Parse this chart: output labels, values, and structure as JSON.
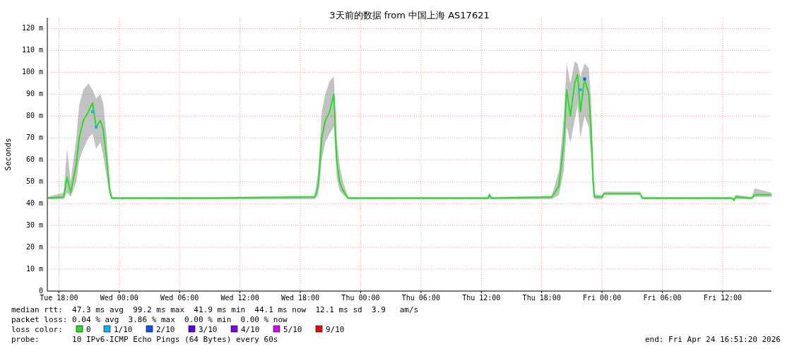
{
  "chart_data": {
    "type": "line",
    "title": "3天前的数据 from 中国上海 AS17621",
    "ylabel": "Seconds",
    "xlim": [
      "2026-04-21T16:51",
      "2026-04-24T16:51"
    ],
    "xticks": [
      {
        "value": "2026-04-21T18:00",
        "label": "Tue 18:00"
      },
      {
        "value": "2026-04-22T00:00",
        "label": "Wed 00:00"
      },
      {
        "value": "2026-04-22T06:00",
        "label": "Wed 06:00"
      },
      {
        "value": "2026-04-22T12:00",
        "label": "Wed 12:00"
      },
      {
        "value": "2026-04-22T18:00",
        "label": "Wed 18:00"
      },
      {
        "value": "2026-04-23T00:00",
        "label": "Thu 00:00"
      },
      {
        "value": "2026-04-23T06:00",
        "label": "Thu 06:00"
      },
      {
        "value": "2026-04-23T12:00",
        "label": "Thu 12:00"
      },
      {
        "value": "2026-04-23T18:00",
        "label": "Thu 18:00"
      },
      {
        "value": "2026-04-24T00:00",
        "label": "Fri 00:00"
      },
      {
        "value": "2026-04-24T06:00",
        "label": "Fri 06:00"
      },
      {
        "value": "2026-04-24T12:00",
        "label": "Fri 12:00"
      }
    ],
    "ylim": [
      0,
      125
    ],
    "yticks": [
      0,
      {
        "value": 10,
        "label": "10 m"
      },
      {
        "value": 20,
        "label": "20 m"
      },
      {
        "value": 30,
        "label": "30 m"
      },
      {
        "value": 40,
        "label": "40 m"
      },
      {
        "value": 50,
        "label": "50 m"
      },
      {
        "value": 60,
        "label": "60 m"
      },
      {
        "value": 70,
        "label": "70 m"
      },
      {
        "value": 80,
        "label": "80 m"
      },
      {
        "value": 90,
        "label": "90 m"
      },
      {
        "value": 100,
        "label": "100 m"
      },
      {
        "value": 110,
        "label": "110 m"
      },
      {
        "value": 120,
        "label": "120 m"
      }
    ],
    "grid": true,
    "legend": "bottom",
    "legend_title": "loss color:",
    "series": [
      {
        "name": "0",
        "color": "#22e022",
        "x": [
          "2026-04-21T16:51",
          "2026-04-21T18:28",
          "2026-04-21T18:49",
          "2026-04-21T19:10",
          "2026-04-21T19:44",
          "2026-04-21T20:01",
          "2026-04-21T20:26",
          "2026-04-21T20:56",
          "2026-04-21T21:21",
          "2026-04-21T21:42",
          "2026-04-21T22:07",
          "2026-04-21T22:24",
          "2026-04-21T22:45",
          "2026-04-21T23:02",
          "2026-04-21T23:15",
          "2026-04-22T09:14",
          "2026-04-22T19:26",
          "2026-04-22T19:47",
          "2026-04-22T20:08",
          "2026-04-22T20:29",
          "2026-04-22T20:55",
          "2026-04-22T21:20",
          "2026-04-22T21:37",
          "2026-04-22T21:54",
          "2026-04-22T22:15",
          "2026-04-22T22:45",
          "2026-04-23T12:40",
          "2026-04-23T12:48",
          "2026-04-23T13:01",
          "2026-04-23T19:00",
          "2026-04-23T19:43",
          "2026-04-23T20:12",
          "2026-04-23T20:29",
          "2026-04-23T20:51",
          "2026-04-23T21:17",
          "2026-04-23T21:34",
          "2026-04-23T21:51",
          "2026-04-23T22:16",
          "2026-04-23T22:41",
          "2026-04-23T22:54",
          "2026-04-23T23:07",
          "2026-04-23T23:15",
          "2026-04-24T00:02",
          "2026-04-24T00:11",
          "2026-04-24T03:47",
          "2026-04-24T04:00",
          "2026-04-24T12:55",
          "2026-04-24T13:07",
          "2026-04-24T13:16",
          "2026-04-24T14:53",
          "2026-04-24T15:10",
          "2026-04-24T16:51"
        ],
        "values": [
          42.5,
          43,
          52,
          45,
          58,
          70,
          78,
          82,
          86,
          75,
          78,
          74,
          60,
          47,
          42.5,
          42.5,
          43,
          48,
          70,
          78,
          82,
          90,
          60,
          50,
          46,
          42.5,
          42.5,
          44,
          42.5,
          43,
          48,
          68,
          92,
          80,
          95,
          99,
          82,
          97,
          90,
          74,
          50,
          43,
          43,
          44.5,
          44.5,
          42.5,
          42.5,
          41.5,
          43,
          42.5,
          44,
          44
        ],
        "lower": [
          42,
          42,
          45,
          43,
          50,
          60,
          65,
          70,
          72,
          65,
          68,
          62,
          52,
          44,
          42,
          42,
          42,
          44,
          60,
          68,
          72,
          75,
          52,
          46,
          44,
          42,
          42,
          42,
          42,
          42,
          44,
          55,
          75,
          68,
          78,
          85,
          70,
          80,
          75,
          62,
          44,
          42,
          42,
          44,
          44,
          42,
          42,
          41,
          42,
          42,
          43,
          43
        ],
        "upper": [
          43,
          45,
          65,
          50,
          70,
          85,
          92,
          95,
          92,
          88,
          90,
          86,
          70,
          50,
          43,
          43,
          43.5,
          55,
          82,
          90,
          96,
          98,
          70,
          58,
          50,
          43,
          43,
          45,
          43,
          43.5,
          55,
          80,
          104,
          95,
          105,
          104,
          98,
          104,
          102,
          88,
          60,
          44,
          44,
          45.5,
          45.5,
          43,
          43,
          42.5,
          44,
          43,
          47,
          45
        ]
      },
      {
        "name": "1/10",
        "color": "#00b8ff",
        "type": "scatter",
        "x": [
          "2026-04-21T21:21",
          "2026-04-21T21:42",
          "2026-04-23T21:51"
        ],
        "values": [
          82,
          75,
          92
        ]
      },
      {
        "name": "2/10",
        "color": "#0059ff",
        "type": "scatter",
        "x": [
          "2026-04-23T22:16"
        ],
        "values": [
          97
        ]
      },
      {
        "name": "3/10",
        "color": "#5e00ff",
        "type": "scatter"
      },
      {
        "name": "4/10",
        "color": "#7e00ff",
        "type": "scatter"
      },
      {
        "name": "5/10",
        "color": "#dd00ff",
        "type": "scatter"
      },
      {
        "name": "9/10",
        "color": "#ff0000",
        "type": "scatter"
      }
    ],
    "annotations": [
      "median rtt:  47.3 ms avg  99.2 ms max  41.9 ms min  44.1 ms now  12.1 ms sd  3.9   am/s",
      "packet loss: 0.04 % avg  3.86 % max  0.00 % min  0.00 % now",
      "probe:       10 IPv6-ICMP Echo Pings (64 Bytes) every 60s",
      "end: Fri Apr 24 16:51:20 2026"
    ]
  }
}
